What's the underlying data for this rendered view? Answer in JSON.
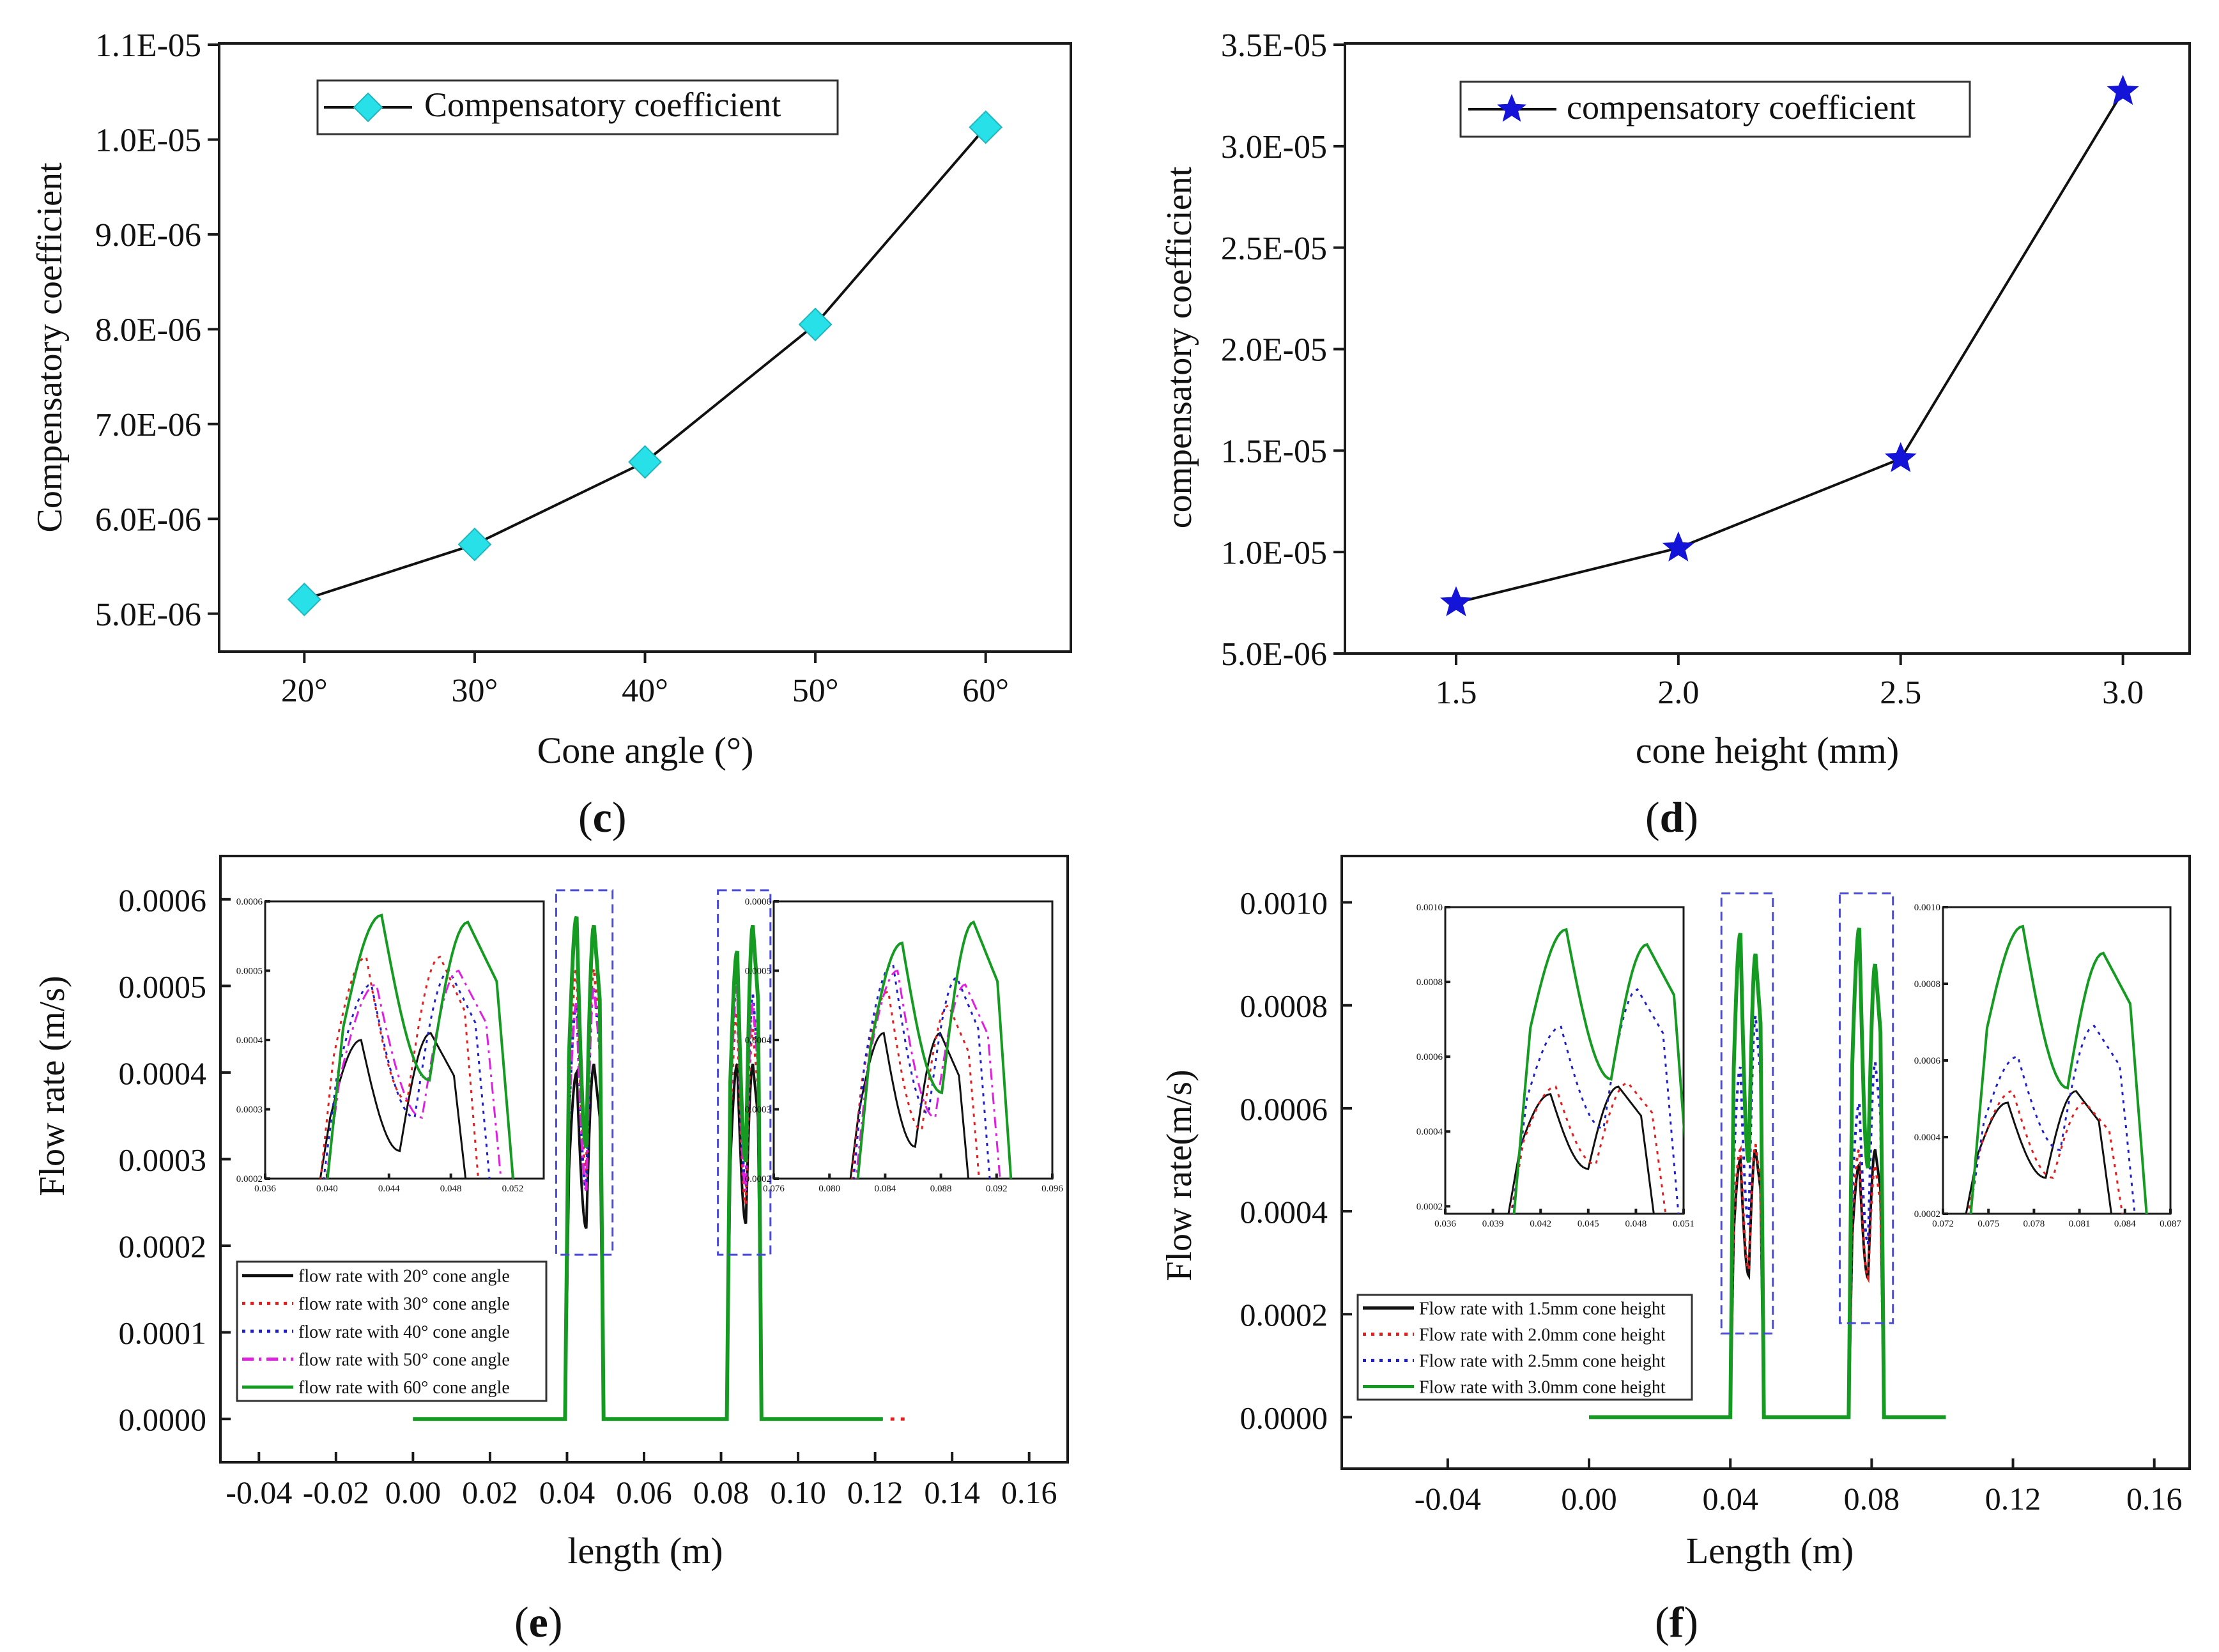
{
  "chart_data": [
    {
      "id": "c",
      "panel_label": "c",
      "type": "line",
      "xlabel": "Cone angle (°)",
      "ylabel": "Compensatory coefficient",
      "categories": [
        "20°",
        "30°",
        "40°",
        "50°",
        "60°"
      ],
      "x": [
        20,
        30,
        40,
        50,
        60
      ],
      "xlim": [
        15,
        65
      ],
      "ylim": [
        4.6e-06,
        1.1e-05
      ],
      "yticks": [
        5e-06,
        6e-06,
        7e-06,
        8e-06,
        9e-06,
        1e-05,
        1.1e-05
      ],
      "ytick_labels": [
        "5.0E-06",
        "6.0E-06",
        "7.0E-06",
        "8.0E-06",
        "9.0E-06",
        "1.0E-05",
        "1.1E-05"
      ],
      "series": [
        {
          "name": "Compensatory coefficient",
          "marker": "diamond",
          "color": "#28e0e8",
          "values": [
            5.15e-06,
            5.73e-06,
            6.6e-06,
            8.05e-06,
            1.013e-05
          ]
        }
      ],
      "legend": "top-left"
    },
    {
      "id": "d",
      "panel_label": "d",
      "type": "line",
      "xlabel": "cone height (mm)",
      "ylabel": "compensatory coefficient",
      "x": [
        1.5,
        2.0,
        2.5,
        3.0
      ],
      "xticks": [
        1.5,
        2.0,
        2.5,
        3.0
      ],
      "xtick_labels": [
        "1.5",
        "2.0",
        "2.5",
        "3.0"
      ],
      "xlim": [
        1.25,
        3.15
      ],
      "ylim": [
        5e-06,
        3.5e-05
      ],
      "yticks": [
        5e-06,
        1e-05,
        1.5e-05,
        2e-05,
        2.5e-05,
        3e-05,
        3.5e-05
      ],
      "ytick_labels": [
        "5.0E-06",
        "1.0E-05",
        "1.5E-05",
        "2.0E-05",
        "2.5E-05",
        "3.0E-05",
        "3.5E-05"
      ],
      "series": [
        {
          "name": "compensatory coefficient",
          "marker": "star",
          "color": "#1414d8",
          "values": [
            7.5e-06,
            1.02e-05,
            1.46e-05,
            3.27e-05
          ]
        }
      ],
      "legend": "top-left"
    },
    {
      "id": "e",
      "panel_label": "e",
      "type": "line",
      "xlabel": "length (m)",
      "ylabel": "Flow rate (m/s)",
      "xlim": [
        -0.05,
        0.17
      ],
      "ylim": [
        -5e-05,
        0.00065
      ],
      "xticks": [
        -0.04,
        -0.02,
        0.0,
        0.02,
        0.04,
        0.06,
        0.08,
        0.1,
        0.12,
        0.14,
        0.16
      ],
      "xtick_labels": [
        "-0.04",
        "-0.02",
        "0.00",
        "0.02",
        "0.04",
        "0.06",
        "0.08",
        "0.10",
        "0.12",
        "0.14",
        "0.16"
      ],
      "yticks": [
        0.0,
        0.0001,
        0.0002,
        0.0003,
        0.0004,
        0.0005,
        0.0006
      ],
      "ytick_labels": [
        "0.0000",
        "0.0001",
        "0.0002",
        "0.0003",
        "0.0004",
        "0.0005",
        "0.0006"
      ],
      "series": [
        {
          "name": "flow rate with 20° cone angle",
          "color": "#111111",
          "dash": "solid",
          "peaks1": [
            0.0004,
            0.00041
          ],
          "peaks2": [
            0.00041,
            0.00041
          ]
        },
        {
          "name": "flow rate with 30° cone angle",
          "color": "#e02020",
          "dash": "dot",
          "peaks1": [
            0.00052,
            0.00052
          ],
          "peaks2": [
            0.00047,
            0.00045
          ]
        },
        {
          "name": "flow rate with 40° cone angle",
          "color": "#2020c8",
          "dash": "dot",
          "peaks1": [
            0.00048,
            0.0005
          ],
          "peaks2": [
            0.00051,
            0.00049
          ]
        },
        {
          "name": "flow rate with 50° cone angle",
          "color": "#e020e0",
          "dash": "dashdot",
          "peaks1": [
            0.00048,
            0.0005
          ],
          "peaks2": [
            0.0005,
            0.00048
          ]
        },
        {
          "name": "flow rate with 60° cone angle",
          "color": "#159a22",
          "dash": "solid",
          "peaks1": [
            0.00058,
            0.00057
          ],
          "peaks2": [
            0.00054,
            0.00057
          ]
        }
      ],
      "baseline_extent": [
        0.0,
        0.122
      ],
      "insets": [
        {
          "xlim": [
            0.036,
            0.054
          ],
          "xticks": [
            0.036,
            0.04,
            0.044,
            0.048,
            0.052
          ],
          "xtick_labels": [
            "0.036",
            "0.040",
            "0.044",
            "0.048",
            "0.052"
          ],
          "ylim": [
            0.0002,
            0.0006
          ],
          "yticks": [
            0.0002,
            0.0003,
            0.0004,
            0.0005,
            0.0006
          ],
          "ytick_labels": [
            "0.0002",
            "0.0003",
            "0.0004",
            "0.0005",
            "0.0006"
          ]
        },
        {
          "xlim": [
            0.076,
            0.096
          ],
          "xticks": [
            0.076,
            0.08,
            0.084,
            0.088,
            0.092,
            0.096
          ],
          "xtick_labels": [
            "0.076",
            "0.080",
            "0.084",
            "0.088",
            "0.092",
            "0.096"
          ],
          "ylim": [
            0.0002,
            0.0006
          ],
          "yticks": [
            0.0002,
            0.0003,
            0.0004,
            0.0005,
            0.0006
          ],
          "ytick_labels": [
            "0.0002",
            "0.0003",
            "0.0004",
            "0.0005",
            "0.0006"
          ]
        }
      ],
      "legend": "bottom-left"
    },
    {
      "id": "f",
      "panel_label": "f",
      "type": "line",
      "xlabel": "Length (m)",
      "ylabel": "Flow rate(m/s)",
      "xlim": [
        -0.07,
        0.17
      ],
      "ylim": [
        -0.0001,
        0.00109
      ],
      "xticks": [
        -0.04,
        0.0,
        0.04,
        0.08,
        0.12,
        0.16
      ],
      "xtick_labels": [
        "-0.04",
        "0.00",
        "0.04",
        "0.08",
        "0.12",
        "0.16"
      ],
      "yticks": [
        0.0,
        0.0002,
        0.0004,
        0.0006,
        0.0008,
        0.001
      ],
      "ytick_labels": [
        "0.0000",
        "0.0002",
        "0.0004",
        "0.0006",
        "0.0008",
        "0.0010"
      ],
      "series": [
        {
          "name": "Flow rate with 1.5mm cone height",
          "color": "#111111",
          "dash": "solid",
          "peaks1": [
            0.0005,
            0.00052
          ],
          "peaks2": [
            0.00049,
            0.00052
          ]
        },
        {
          "name": "Flow rate with 2.0mm cone height",
          "color": "#e02020",
          "dash": "dot",
          "peaks1": [
            0.00052,
            0.00053
          ],
          "peaks2": [
            0.00052,
            0.00049
          ]
        },
        {
          "name": "Flow rate with 2.5mm cone height",
          "color": "#2020c8",
          "dash": "dot",
          "peaks1": [
            0.00068,
            0.00078
          ],
          "peaks2": [
            0.00061,
            0.00069
          ]
        },
        {
          "name": "Flow rate with 3.0mm cone height",
          "color": "#159a22",
          "dash": "solid",
          "peaks1": [
            0.00094,
            0.0009
          ],
          "peaks2": [
            0.00095,
            0.00088
          ]
        }
      ],
      "baseline_extent": [
        0.0,
        0.101
      ],
      "insets": [
        {
          "xlim": [
            0.036,
            0.051
          ],
          "xticks": [
            0.036,
            0.039,
            0.042,
            0.045,
            0.048,
            0.051
          ],
          "xtick_labels": [
            "0.036",
            "0.039",
            "0.042",
            "0.045",
            "0.048",
            "0.051"
          ],
          "ylim": [
            0.00018,
            0.001
          ],
          "yticks": [
            0.0002,
            0.0004,
            0.0006,
            0.0008,
            0.001
          ],
          "ytick_labels": [
            "0.0002",
            "0.0004",
            "0.0006",
            "0.0008",
            "0.0010"
          ]
        },
        {
          "xlim": [
            0.072,
            0.087
          ],
          "xticks": [
            0.072,
            0.075,
            0.078,
            0.081,
            0.084,
            0.087
          ],
          "xtick_labels": [
            "0.072",
            "0.075",
            "0.078",
            "0.081",
            "0.084",
            "0.087"
          ],
          "ylim": [
            0.0002,
            0.001
          ],
          "yticks": [
            0.0002,
            0.0004,
            0.0006,
            0.0008,
            0.001
          ],
          "ytick_labels": [
            "0.0002",
            "0.0004",
            "0.0006",
            "0.0008",
            "0.0010"
          ]
        }
      ],
      "legend": "bottom-left"
    }
  ]
}
